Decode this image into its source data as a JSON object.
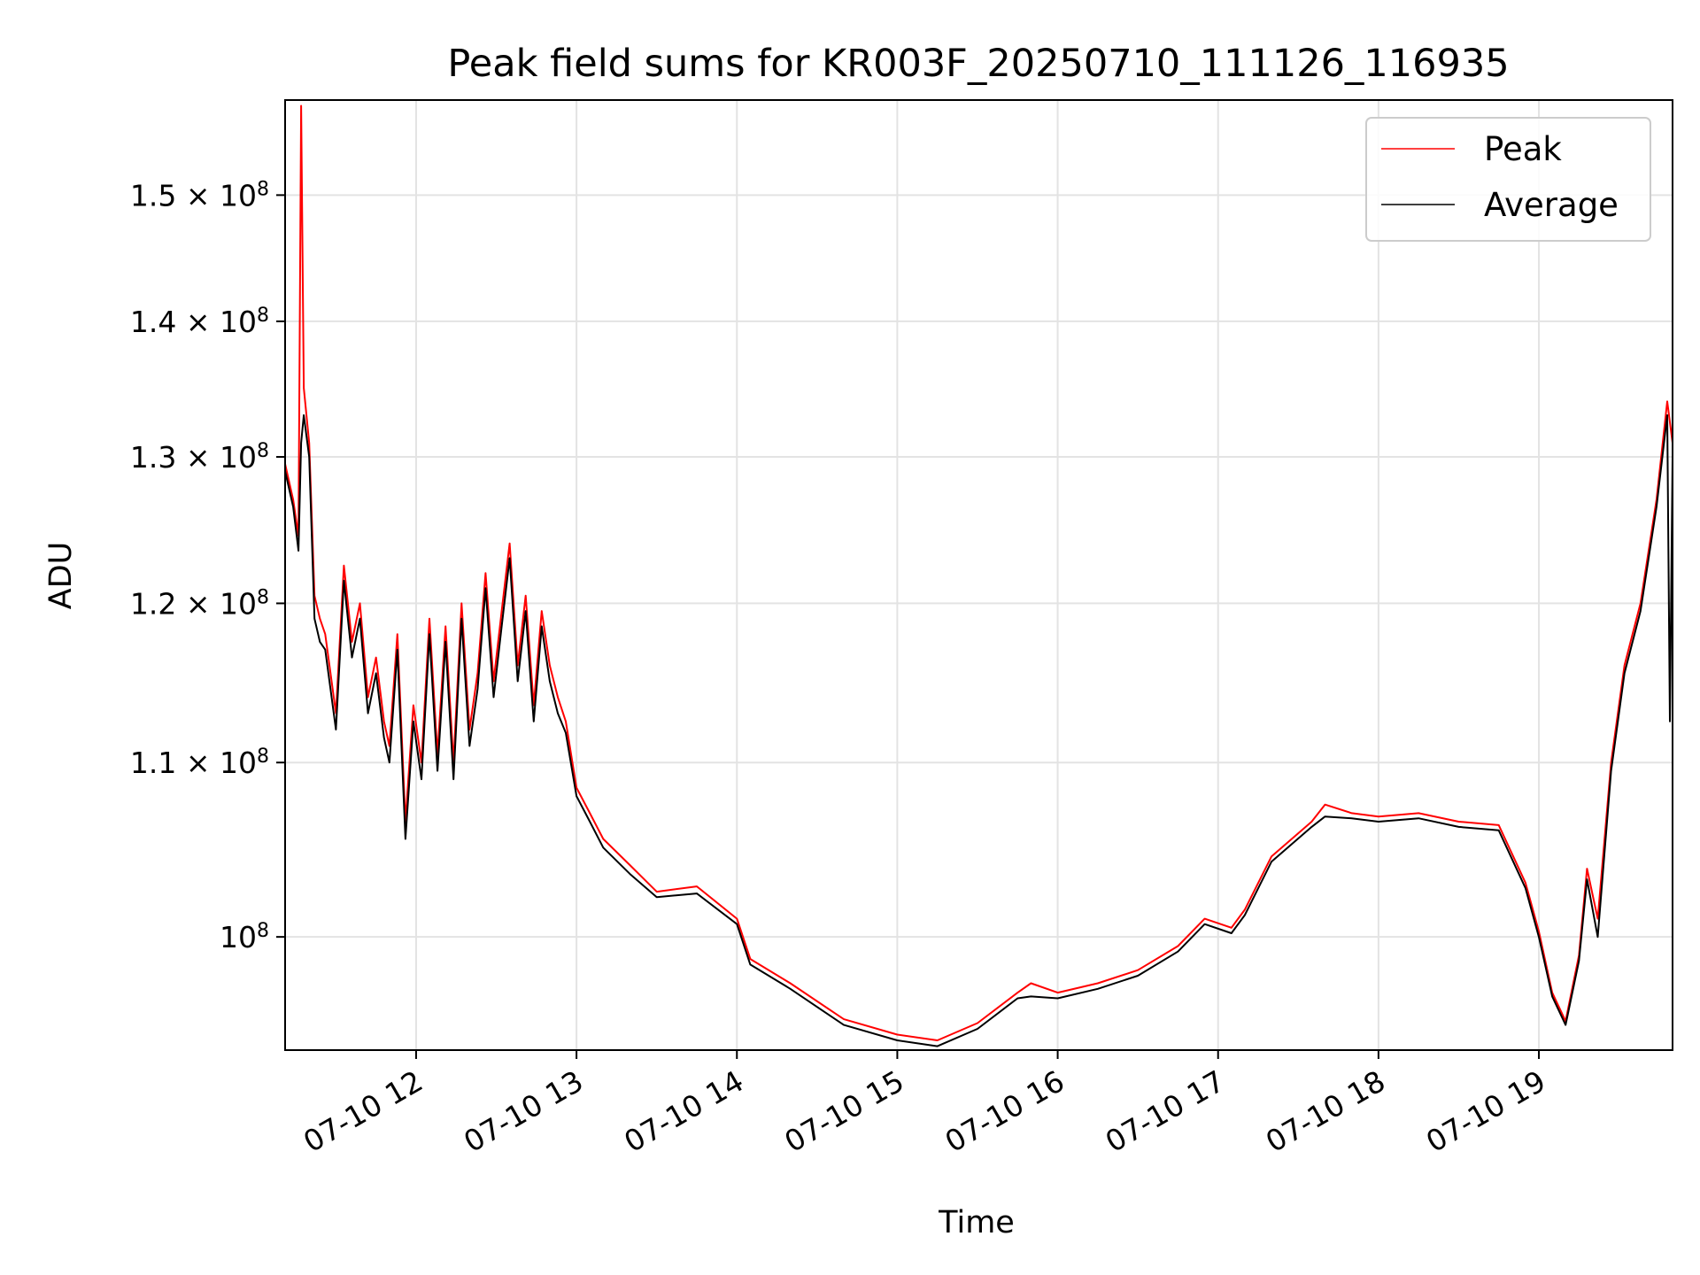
{
  "chart_data": {
    "type": "line",
    "title": "Peak field sums for KR003F_20250710_111126_116935",
    "xlabel": "Time",
    "ylabel": "ADU",
    "yscale": "log",
    "xlim": [
      "2025-07-10 11:11",
      "2025-07-10 19:50"
    ],
    "ylim": [
      94000000,
      158000000
    ],
    "grid": true,
    "legend_position": "top-right",
    "x_tick_labels": [
      "07-10 12",
      "07-10 13",
      "07-10 14",
      "07-10 15",
      "07-10 16",
      "07-10 17",
      "07-10 18",
      "07-10 19"
    ],
    "y_tick_labels": [
      {
        "value": 100000000,
        "mantissa": "",
        "exponent": "8",
        "base": "10"
      },
      {
        "value": 110000000,
        "mantissa": "1.1",
        "exponent": "8",
        "base": "10"
      },
      {
        "value": 120000000,
        "mantissa": "1.2",
        "exponent": "8",
        "base": "10"
      },
      {
        "value": 130000000,
        "mantissa": "1.3",
        "exponent": "8",
        "base": "10"
      },
      {
        "value": 140000000,
        "mantissa": "1.4",
        "exponent": "8",
        "base": "10"
      },
      {
        "value": 150000000,
        "mantissa": "1.5",
        "exponent": "8",
        "base": "10"
      }
    ],
    "series": [
      {
        "name": "Peak",
        "color": "#ff0000",
        "points": [
          [
            "2025-07-10 11:11",
            129.5
          ],
          [
            "2025-07-10 11:14",
            127.0
          ],
          [
            "2025-07-10 11:16",
            124.5
          ],
          [
            "2025-07-10 11:17",
            157.5
          ],
          [
            "2025-07-10 11:18",
            135.0
          ],
          [
            "2025-07-10 11:20",
            131.0
          ],
          [
            "2025-07-10 11:22",
            120.5
          ],
          [
            "2025-07-10 11:24",
            119.0
          ],
          [
            "2025-07-10 11:26",
            118.0
          ],
          [
            "2025-07-10 11:28",
            115.5
          ],
          [
            "2025-07-10 11:30",
            113.0
          ],
          [
            "2025-07-10 11:33",
            122.5
          ],
          [
            "2025-07-10 11:36",
            117.5
          ],
          [
            "2025-07-10 11:39",
            120.0
          ],
          [
            "2025-07-10 11:42",
            114.0
          ],
          [
            "2025-07-10 11:45",
            116.5
          ],
          [
            "2025-07-10 11:48",
            112.5
          ],
          [
            "2025-07-10 11:50",
            111.0
          ],
          [
            "2025-07-10 11:53",
            118.0
          ],
          [
            "2025-07-10 11:56",
            106.5
          ],
          [
            "2025-07-10 11:59",
            113.5
          ],
          [
            "2025-07-10 12:02",
            110.0
          ],
          [
            "2025-07-10 12:05",
            119.0
          ],
          [
            "2025-07-10 12:08",
            110.5
          ],
          [
            "2025-07-10 12:11",
            118.5
          ],
          [
            "2025-07-10 12:14",
            110.0
          ],
          [
            "2025-07-10 12:17",
            120.0
          ],
          [
            "2025-07-10 12:20",
            112.0
          ],
          [
            "2025-07-10 12:23",
            115.5
          ],
          [
            "2025-07-10 12:26",
            122.0
          ],
          [
            "2025-07-10 12:29",
            115.0
          ],
          [
            "2025-07-10 12:32",
            119.5
          ],
          [
            "2025-07-10 12:35",
            124.0
          ],
          [
            "2025-07-10 12:38",
            116.0
          ],
          [
            "2025-07-10 12:41",
            120.5
          ],
          [
            "2025-07-10 12:44",
            113.5
          ],
          [
            "2025-07-10 12:47",
            119.5
          ],
          [
            "2025-07-10 12:50",
            116.0
          ],
          [
            "2025-07-10 12:53",
            114.0
          ],
          [
            "2025-07-10 12:56",
            112.5
          ],
          [
            "2025-07-10 13:00",
            108.5
          ],
          [
            "2025-07-10 13:05",
            107.0
          ],
          [
            "2025-07-10 13:10",
            105.5
          ],
          [
            "2025-07-10 13:20",
            104.0
          ],
          [
            "2025-07-10 13:30",
            102.5
          ],
          [
            "2025-07-10 13:45",
            102.8
          ],
          [
            "2025-07-10 14:00",
            101.0
          ],
          [
            "2025-07-10 14:05",
            98.8
          ],
          [
            "2025-07-10 14:20",
            97.5
          ],
          [
            "2025-07-10 14:40",
            95.6
          ],
          [
            "2025-07-10 15:00",
            94.8
          ],
          [
            "2025-07-10 15:15",
            94.5
          ],
          [
            "2025-07-10 15:30",
            95.4
          ],
          [
            "2025-07-10 15:45",
            97.0
          ],
          [
            "2025-07-10 15:50",
            97.5
          ],
          [
            "2025-07-10 16:00",
            97.0
          ],
          [
            "2025-07-10 16:15",
            97.5
          ],
          [
            "2025-07-10 16:30",
            98.2
          ],
          [
            "2025-07-10 16:45",
            99.5
          ],
          [
            "2025-07-10 16:55",
            101.0
          ],
          [
            "2025-07-10 17:05",
            100.5
          ],
          [
            "2025-07-10 17:10",
            101.5
          ],
          [
            "2025-07-10 17:20",
            104.5
          ],
          [
            "2025-07-10 17:35",
            106.5
          ],
          [
            "2025-07-10 17:40",
            107.5
          ],
          [
            "2025-07-10 17:50",
            107.0
          ],
          [
            "2025-07-10 18:00",
            106.8
          ],
          [
            "2025-07-10 18:15",
            107.0
          ],
          [
            "2025-07-10 18:30",
            106.5
          ],
          [
            "2025-07-10 18:45",
            106.3
          ],
          [
            "2025-07-10 18:55",
            103.0
          ],
          [
            "2025-07-10 19:00",
            100.3
          ],
          [
            "2025-07-10 19:05",
            97.0
          ],
          [
            "2025-07-10 19:10",
            95.5
          ],
          [
            "2025-07-10 19:15",
            99.0
          ],
          [
            "2025-07-10 19:18",
            103.8
          ],
          [
            "2025-07-10 19:22",
            101.0
          ],
          [
            "2025-07-10 19:27",
            110.0
          ],
          [
            "2025-07-10 19:32",
            116.0
          ],
          [
            "2025-07-10 19:38",
            120.0
          ],
          [
            "2025-07-10 19:44",
            127.0
          ],
          [
            "2025-07-10 19:48",
            134.0
          ],
          [
            "2025-07-10 19:50",
            131.0
          ]
        ]
      },
      {
        "name": "Average",
        "color": "#000000",
        "points": [
          [
            "2025-07-10 11:11",
            129.0
          ],
          [
            "2025-07-10 11:14",
            126.5
          ],
          [
            "2025-07-10 11:16",
            123.5
          ],
          [
            "2025-07-10 11:17",
            131.0
          ],
          [
            "2025-07-10 11:18",
            133.0
          ],
          [
            "2025-07-10 11:20",
            130.0
          ],
          [
            "2025-07-10 11:22",
            119.0
          ],
          [
            "2025-07-10 11:24",
            117.5
          ],
          [
            "2025-07-10 11:26",
            117.0
          ],
          [
            "2025-07-10 11:28",
            114.5
          ],
          [
            "2025-07-10 11:30",
            112.0
          ],
          [
            "2025-07-10 11:33",
            121.5
          ],
          [
            "2025-07-10 11:36",
            116.5
          ],
          [
            "2025-07-10 11:39",
            119.0
          ],
          [
            "2025-07-10 11:42",
            113.0
          ],
          [
            "2025-07-10 11:45",
            115.5
          ],
          [
            "2025-07-10 11:48",
            111.5
          ],
          [
            "2025-07-10 11:50",
            110.0
          ],
          [
            "2025-07-10 11:53",
            117.0
          ],
          [
            "2025-07-10 11:56",
            105.5
          ],
          [
            "2025-07-10 11:59",
            112.5
          ],
          [
            "2025-07-10 12:02",
            109.0
          ],
          [
            "2025-07-10 12:05",
            118.0
          ],
          [
            "2025-07-10 12:08",
            109.5
          ],
          [
            "2025-07-10 12:11",
            117.5
          ],
          [
            "2025-07-10 12:14",
            109.0
          ],
          [
            "2025-07-10 12:17",
            119.0
          ],
          [
            "2025-07-10 12:20",
            111.0
          ],
          [
            "2025-07-10 12:23",
            114.5
          ],
          [
            "2025-07-10 12:26",
            121.0
          ],
          [
            "2025-07-10 12:29",
            114.0
          ],
          [
            "2025-07-10 12:32",
            118.5
          ],
          [
            "2025-07-10 12:35",
            123.0
          ],
          [
            "2025-07-10 12:38",
            115.0
          ],
          [
            "2025-07-10 12:41",
            119.5
          ],
          [
            "2025-07-10 12:44",
            112.5
          ],
          [
            "2025-07-10 12:47",
            118.5
          ],
          [
            "2025-07-10 12:50",
            115.0
          ],
          [
            "2025-07-10 12:53",
            113.0
          ],
          [
            "2025-07-10 12:56",
            111.8
          ],
          [
            "2025-07-10 13:00",
            108.0
          ],
          [
            "2025-07-10 13:05",
            106.5
          ],
          [
            "2025-07-10 13:10",
            105.0
          ],
          [
            "2025-07-10 13:20",
            103.5
          ],
          [
            "2025-07-10 13:30",
            102.2
          ],
          [
            "2025-07-10 13:45",
            102.4
          ],
          [
            "2025-07-10 14:00",
            100.7
          ],
          [
            "2025-07-10 14:05",
            98.5
          ],
          [
            "2025-07-10 14:20",
            97.2
          ],
          [
            "2025-07-10 14:40",
            95.3
          ],
          [
            "2025-07-10 15:00",
            94.5
          ],
          [
            "2025-07-10 15:15",
            94.2
          ],
          [
            "2025-07-10 15:30",
            95.1
          ],
          [
            "2025-07-10 15:45",
            96.7
          ],
          [
            "2025-07-10 15:50",
            96.8
          ],
          [
            "2025-07-10 16:00",
            96.7
          ],
          [
            "2025-07-10 16:15",
            97.2
          ],
          [
            "2025-07-10 16:30",
            97.9
          ],
          [
            "2025-07-10 16:45",
            99.2
          ],
          [
            "2025-07-10 16:55",
            100.7
          ],
          [
            "2025-07-10 17:05",
            100.2
          ],
          [
            "2025-07-10 17:10",
            101.2
          ],
          [
            "2025-07-10 17:20",
            104.2
          ],
          [
            "2025-07-10 17:35",
            106.2
          ],
          [
            "2025-07-10 17:40",
            106.8
          ],
          [
            "2025-07-10 17:50",
            106.7
          ],
          [
            "2025-07-10 18:00",
            106.5
          ],
          [
            "2025-07-10 18:15",
            106.7
          ],
          [
            "2025-07-10 18:30",
            106.2
          ],
          [
            "2025-07-10 18:45",
            106.0
          ],
          [
            "2025-07-10 18:55",
            102.7
          ],
          [
            "2025-07-10 19:00",
            100.0
          ],
          [
            "2025-07-10 19:05",
            96.8
          ],
          [
            "2025-07-10 19:10",
            95.3
          ],
          [
            "2025-07-10 19:15",
            98.7
          ],
          [
            "2025-07-10 19:18",
            103.2
          ],
          [
            "2025-07-10 19:22",
            100.0
          ],
          [
            "2025-07-10 19:27",
            109.5
          ],
          [
            "2025-07-10 19:32",
            115.5
          ],
          [
            "2025-07-10 19:38",
            119.5
          ],
          [
            "2025-07-10 19:44",
            126.5
          ],
          [
            "2025-07-10 19:48",
            133.0
          ],
          [
            "2025-07-10 19:49",
            112.5
          ],
          [
            "2025-07-10 19:50",
            130.0
          ]
        ]
      }
    ]
  }
}
